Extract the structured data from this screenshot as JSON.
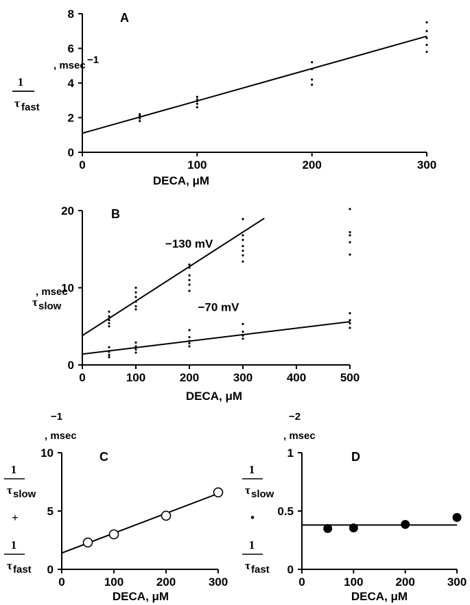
{
  "chart_data": [
    {
      "panel": "A",
      "type": "scatter",
      "xlabel": "DECA, μM",
      "ylabel": {
        "tau": "τ",
        "sub": "fast",
        "suffix": ", msec",
        "exp": "−1"
      },
      "xlim": [
        0,
        300
      ],
      "ylim": [
        0,
        8
      ],
      "xticks": [
        0,
        100,
        200,
        300
      ],
      "yticks": [
        0,
        2,
        4,
        6,
        8
      ],
      "points": [
        [
          50,
          1.8
        ],
        [
          50,
          1.95
        ],
        [
          50,
          2.05
        ],
        [
          50,
          2.1
        ],
        [
          50,
          2.2
        ],
        [
          100,
          2.6
        ],
        [
          100,
          2.8
        ],
        [
          100,
          2.95
        ],
        [
          100,
          3.05
        ],
        [
          100,
          3.2
        ],
        [
          200,
          3.9
        ],
        [
          200,
          4.2
        ],
        [
          200,
          4.8
        ],
        [
          200,
          5.2
        ],
        [
          300,
          5.8
        ],
        [
          300,
          6.2
        ],
        [
          300,
          6.6
        ],
        [
          300,
          7.0
        ],
        [
          300,
          7.5
        ]
      ],
      "fits": [
        {
          "x": [
            0,
            300
          ],
          "y": [
            1.1,
            6.7
          ]
        }
      ]
    },
    {
      "panel": "B",
      "type": "scatter",
      "xlabel": "DECA, μM",
      "ylabel": {
        "tau": "τ",
        "sub": "slow",
        "suffix": ", msec"
      },
      "xlim": [
        0,
        500
      ],
      "ylim": [
        0,
        20
      ],
      "xticks": [
        0,
        100,
        200,
        300,
        400,
        500
      ],
      "yticks": [
        0,
        10,
        20
      ],
      "points": [
        [
          50,
          5.0
        ],
        [
          50,
          5.4
        ],
        [
          50,
          5.8
        ],
        [
          50,
          6.3
        ],
        [
          50,
          6.9
        ],
        [
          100,
          7.2
        ],
        [
          100,
          7.6
        ],
        [
          100,
          8.2
        ],
        [
          100,
          8.8
        ],
        [
          100,
          9.4
        ],
        [
          100,
          10.0
        ],
        [
          200,
          9.6
        ],
        [
          200,
          10.4
        ],
        [
          200,
          11.0
        ],
        [
          200,
          11.6
        ],
        [
          200,
          12.6
        ],
        [
          200,
          13.0
        ],
        [
          300,
          13.4
        ],
        [
          300,
          14.2
        ],
        [
          300,
          14.8
        ],
        [
          300,
          15.4
        ],
        [
          300,
          16.2
        ],
        [
          300,
          16.8
        ],
        [
          300,
          18.9
        ],
        [
          500,
          14.3
        ],
        [
          500,
          15.9
        ],
        [
          500,
          16.8
        ],
        [
          500,
          17.2
        ],
        [
          500,
          20.2
        ],
        [
          50,
          1.0
        ],
        [
          50,
          1.3
        ],
        [
          50,
          1.7
        ],
        [
          50,
          2.3
        ],
        [
          100,
          1.6
        ],
        [
          100,
          2.0
        ],
        [
          100,
          2.4
        ],
        [
          100,
          2.9
        ],
        [
          200,
          2.4
        ],
        [
          200,
          2.8
        ],
        [
          200,
          3.1
        ],
        [
          200,
          3.6
        ],
        [
          200,
          4.5
        ],
        [
          300,
          3.4
        ],
        [
          300,
          3.8
        ],
        [
          300,
          4.3
        ],
        [
          300,
          5.3
        ],
        [
          500,
          4.8
        ],
        [
          500,
          5.4
        ],
        [
          500,
          5.8
        ],
        [
          500,
          6.7
        ]
      ],
      "fits": [
        {
          "name": "−130 mV",
          "x": [
            0,
            340
          ],
          "y": [
            3.8,
            19.0
          ]
        },
        {
          "name": "−70 mV",
          "x": [
            0,
            500
          ],
          "y": [
            1.4,
            5.6
          ]
        }
      ],
      "annotations": [
        {
          "text": "−130 mV",
          "x": 155,
          "y": 15.2
        },
        {
          "text": "−70 mV",
          "x": 216,
          "y": 7.0
        }
      ]
    },
    {
      "panel": "C",
      "type": "scatter",
      "xlabel": "DECA, μM",
      "ylabel": {
        "tau": "τ",
        "sub1": "fast",
        "op": "+",
        "sub2": "slow",
        "suffix": ", msec",
        "exp": "−1"
      },
      "xlim": [
        0,
        300
      ],
      "ylim": [
        0,
        10
      ],
      "xticks": [
        0,
        100,
        200,
        300
      ],
      "yticks": [
        0,
        5,
        10
      ],
      "marker": "open-circle",
      "points": [
        [
          50,
          2.3
        ],
        [
          100,
          3.0
        ],
        [
          200,
          4.6
        ],
        [
          300,
          6.6
        ]
      ],
      "fits": [
        {
          "x": [
            0,
            300
          ],
          "y": [
            1.4,
            6.5
          ]
        }
      ]
    },
    {
      "panel": "D",
      "type": "scatter",
      "xlabel": "DECA, μM",
      "ylabel": {
        "tau": "τ",
        "sub1": "fast",
        "op": "•",
        "sub2": "slow",
        "suffix": ", msec",
        "exp": "−2"
      },
      "xlim": [
        0,
        300
      ],
      "ylim": [
        0,
        1
      ],
      "xticks": [
        0,
        100,
        200,
        300
      ],
      "yticks": [
        0,
        0.5,
        1
      ],
      "ytick_labels": [
        "0",
        "0.5",
        "1"
      ],
      "marker": "filled-circle",
      "points": [
        [
          50,
          0.35
        ],
        [
          100,
          0.355
        ],
        [
          200,
          0.385
        ],
        [
          300,
          0.445
        ]
      ],
      "fits": [
        {
          "x": [
            0,
            300
          ],
          "y": [
            0.38,
            0.38
          ]
        }
      ]
    }
  ]
}
